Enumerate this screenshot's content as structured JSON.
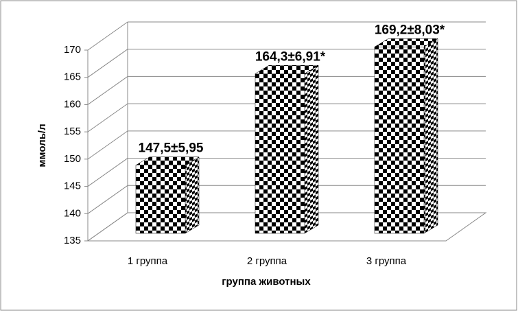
{
  "chart_data": {
    "type": "bar3d",
    "categories": [
      "1 группа",
      "2 группа",
      "3 группа"
    ],
    "values": [
      147.5,
      164.3,
      169.2
    ],
    "value_labels": [
      "147,5±5,95",
      "164,3±6,91*",
      "169,2±8,03*"
    ],
    "x_label": "группа животных",
    "y_label": "ммоль/л",
    "ylim": [
      135,
      170
    ],
    "yticks": [
      135,
      140,
      145,
      150,
      155,
      160,
      165,
      170
    ],
    "grid": true,
    "color": "#000000"
  }
}
